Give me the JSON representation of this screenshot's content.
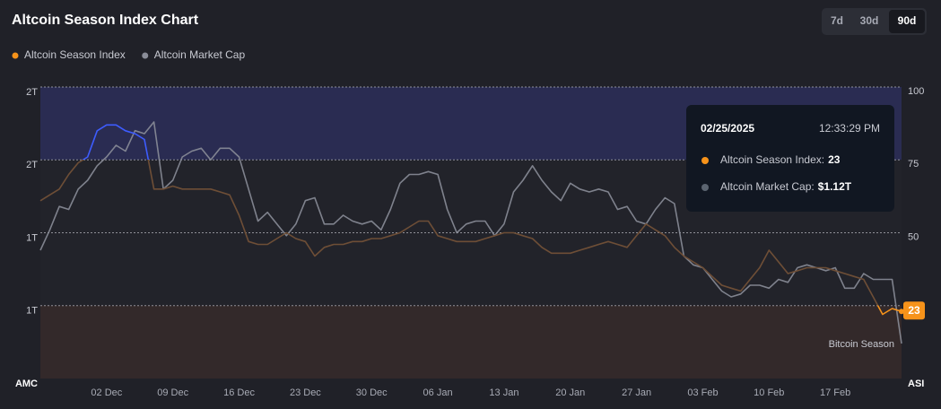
{
  "chart_data": {
    "type": "line",
    "title": "Altcoin Season Index Chart",
    "range_buttons": [
      "7d",
      "30d",
      "90d"
    ],
    "active_range": "90d",
    "categories": [
      null,
      null,
      null,
      null,
      null,
      null,
      null,
      "02 Dec",
      null,
      null,
      null,
      null,
      null,
      null,
      "09 Dec",
      null,
      null,
      null,
      null,
      null,
      null,
      "16 Dec",
      null,
      null,
      null,
      null,
      null,
      null,
      "23 Dec",
      null,
      null,
      null,
      null,
      null,
      null,
      "30 Dec",
      null,
      null,
      null,
      null,
      null,
      null,
      "06 Jan",
      null,
      null,
      null,
      null,
      null,
      null,
      "13 Jan",
      null,
      null,
      null,
      null,
      null,
      null,
      "20 Jan",
      null,
      null,
      null,
      null,
      null,
      null,
      "27 Jan",
      null,
      null,
      null,
      null,
      null,
      null,
      "03 Feb",
      null,
      null,
      null,
      null,
      null,
      null,
      "10 Feb",
      null,
      null,
      null,
      null,
      null,
      null,
      "17 Feb",
      null,
      null,
      null,
      null,
      null,
      null,
      null
    ],
    "series": [
      {
        "name": "Altcoin Season Index",
        "color": "#f7931a",
        "axis": "y2",
        "values": [
          61,
          63,
          65,
          70,
          74,
          76,
          85,
          87,
          87,
          85,
          84,
          82,
          65,
          65,
          66,
          65,
          65,
          65,
          65,
          64,
          63,
          56,
          47,
          46,
          46,
          48,
          50,
          48,
          47,
          42,
          45,
          46,
          46,
          47,
          47,
          48,
          48,
          49,
          50,
          52,
          54,
          54,
          49,
          48,
          47,
          47,
          47,
          48,
          49,
          50,
          50,
          49,
          48,
          45,
          43,
          43,
          43,
          44,
          45,
          46,
          47,
          46,
          45,
          49,
          53,
          51,
          49,
          45,
          42,
          40,
          38,
          35,
          32,
          31,
          30,
          34,
          38,
          44,
          40,
          36,
          37,
          38,
          38,
          38,
          37,
          36,
          35,
          34,
          28,
          22,
          24,
          23
        ]
      },
      {
        "name": "Altcoin Market Cap",
        "color": "#8a8d98",
        "values": [
          1.44,
          1.51,
          1.59,
          1.58,
          1.65,
          1.68,
          1.73,
          1.76,
          1.8,
          1.78,
          1.85,
          1.84,
          1.88,
          1.65,
          1.68,
          1.76,
          1.78,
          1.79,
          1.75,
          1.79,
          1.79,
          1.76,
          1.65,
          1.54,
          1.57,
          1.53,
          1.49,
          1.53,
          1.61,
          1.62,
          1.53,
          1.53,
          1.56,
          1.54,
          1.53,
          1.54,
          1.51,
          1.58,
          1.67,
          1.7,
          1.7,
          1.71,
          1.7,
          1.58,
          1.5,
          1.53,
          1.54,
          1.54,
          1.49,
          1.53,
          1.64,
          1.68,
          1.73,
          1.68,
          1.64,
          1.61,
          1.67,
          1.65,
          1.64,
          1.65,
          1.64,
          1.58,
          1.59,
          1.54,
          1.53,
          1.58,
          1.62,
          1.6,
          1.42,
          1.39,
          1.38,
          1.34,
          1.3,
          1.28,
          1.29,
          1.32,
          1.32,
          1.31,
          1.34,
          1.33,
          1.38,
          1.39,
          1.38,
          1.37,
          1.38,
          1.31,
          1.31,
          1.36,
          1.34,
          1.34,
          1.34,
          1.12
        ]
      }
    ],
    "ylabel": "AMC",
    "ylim": [
      1,
      2
    ],
    "yticks": [
      {
        "value": 1.25,
        "label": "1T"
      },
      {
        "value": 1.5,
        "label": "1T"
      },
      {
        "value": 1.75,
        "label": "2T"
      },
      {
        "value": 2,
        "label": "2T"
      }
    ],
    "y2label": "ASI",
    "y2lim": [
      0,
      100
    ],
    "y2ticks": [
      25,
      50,
      75,
      100
    ],
    "grid": true,
    "bands": [
      {
        "from": 75,
        "to": 100,
        "color": "#2a2c52",
        "line_color": "#3d5cff"
      },
      {
        "from": 25,
        "to": 75,
        "color": "#22232a",
        "line_color": "#6e4e36"
      },
      {
        "from": 0,
        "to": 25,
        "color": "#33292a",
        "line_color": "#f7931a",
        "label": "Bitcoin Season"
      }
    ],
    "tooltip": {
      "date": "02/25/2025",
      "time": "12:33:29 PM",
      "items": [
        {
          "label": "Altcoin Season Index:",
          "value": "23",
          "color": "#f7931a"
        },
        {
          "label": "Altcoin Market Cap:",
          "value": "$1.12T",
          "color": "#5b6470"
        }
      ]
    }
  }
}
